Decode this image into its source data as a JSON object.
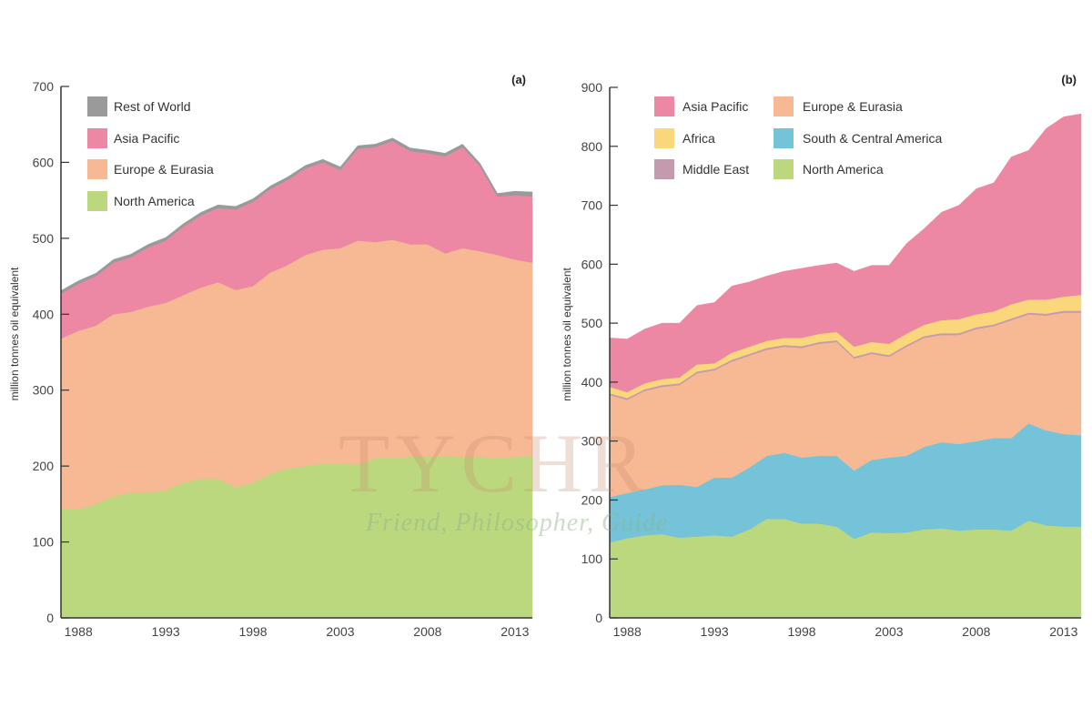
{
  "chart_data": [
    {
      "type": "area",
      "stacked": true,
      "panel_label": "(a)",
      "ylabel": "million tonnes oil equivalent",
      "xlim": [
        1987,
        2014
      ],
      "ylim": [
        0,
        700
      ],
      "yticks": [
        0,
        100,
        200,
        300,
        400,
        500,
        600,
        700
      ],
      "xticks": [
        1988,
        1993,
        1998,
        2003,
        2008,
        2013
      ],
      "grid": false,
      "legend_position": "top-left",
      "x": [
        1987,
        1988,
        1989,
        1990,
        1991,
        1992,
        1993,
        1994,
        1995,
        1996,
        1997,
        1998,
        1999,
        2000,
        2001,
        2002,
        2003,
        2004,
        2005,
        2006,
        2007,
        2008,
        2009,
        2010,
        2011,
        2012,
        2013,
        2014
      ],
      "series": [
        {
          "name": "North America",
          "color": "#bcd87f",
          "values": [
            143,
            143,
            150,
            160,
            165,
            165,
            168,
            178,
            183,
            183,
            172,
            178,
            190,
            197,
            200,
            203,
            203,
            202,
            210,
            210,
            212,
            213,
            213,
            212,
            212,
            210,
            212,
            213
          ]
        },
        {
          "name": "Europe & Eurasia",
          "color": "#f6b994",
          "values": [
            225,
            235,
            235,
            240,
            238,
            245,
            247,
            247,
            252,
            259,
            260,
            259,
            265,
            268,
            278,
            282,
            284,
            295,
            285,
            288,
            280,
            279,
            267,
            275,
            271,
            268,
            260,
            255
          ]
        },
        {
          "name": "Asia Pacific",
          "color": "#ec88a3",
          "values": [
            59,
            62,
            65,
            68,
            72,
            78,
            82,
            90,
            95,
            98,
            106,
            111,
            110,
            112,
            114,
            115,
            103,
            121,
            125,
            130,
            123,
            120,
            128,
            133,
            112,
            77,
            85,
            87
          ]
        },
        {
          "name": "Rest of World",
          "color": "#9a9a9a",
          "values": [
            4,
            4,
            4,
            4,
            4,
            4,
            4,
            4,
            4,
            4,
            4,
            4,
            4,
            4,
            4,
            4,
            4,
            4,
            4,
            4,
            4,
            4,
            4,
            4,
            4,
            4,
            5,
            6
          ]
        }
      ],
      "legend_order": [
        "Rest of World",
        "Asia Pacific",
        "Europe & Eurasia",
        "North America"
      ]
    },
    {
      "type": "area",
      "stacked": true,
      "panel_label": "(b)",
      "ylabel": "million tonnes oil equivalent",
      "xlim": [
        1987,
        2014
      ],
      "ylim": [
        0,
        900
      ],
      "yticks": [
        0,
        100,
        200,
        300,
        400,
        500,
        600,
        700,
        800,
        900
      ],
      "xticks": [
        1988,
        1993,
        1998,
        2003,
        2008,
        2013
      ],
      "grid": false,
      "legend_position": "top-left",
      "x": [
        1987,
        1988,
        1989,
        1990,
        1991,
        1992,
        1993,
        1994,
        1995,
        1996,
        1997,
        1998,
        1999,
        2000,
        2001,
        2002,
        2003,
        2004,
        2005,
        2006,
        2007,
        2008,
        2009,
        2010,
        2011,
        2012,
        2013,
        2014
      ],
      "series": [
        {
          "name": "North America",
          "color": "#bcd87f",
          "values": [
            128,
            135,
            140,
            142,
            136,
            138,
            140,
            138,
            150,
            168,
            168,
            160,
            160,
            155,
            134,
            145,
            144,
            145,
            150,
            152,
            148,
            150,
            150,
            148,
            165,
            157,
            155,
            155
          ]
        },
        {
          "name": "South & Central America",
          "color": "#74c3d8",
          "values": [
            77,
            77,
            78,
            83,
            90,
            84,
            98,
            100,
            105,
            107,
            112,
            112,
            115,
            120,
            116,
            123,
            128,
            130,
            140,
            146,
            147,
            150,
            155,
            157,
            165,
            161,
            157,
            155
          ]
        },
        {
          "name": "Europe & Eurasia",
          "color": "#f6b994",
          "values": [
            173,
            158,
            167,
            167,
            169,
            193,
            182,
            197,
            190,
            180,
            180,
            186,
            190,
            193,
            190,
            180,
            171,
            185,
            185,
            182,
            185,
            190,
            190,
            200,
            185,
            195,
            206,
            208
          ]
        },
        {
          "name": "Middle East",
          "color": "#c49aae",
          "values": [
            3,
            3,
            3,
            3,
            3,
            3,
            3,
            3,
            3,
            3,
            3,
            3,
            3,
            3,
            3,
            3,
            3,
            3,
            3,
            3,
            3,
            3,
            3,
            3,
            3,
            3,
            3,
            3
          ]
        },
        {
          "name": "Africa",
          "color": "#f9d77a",
          "values": [
            11,
            10,
            10,
            10,
            10,
            12,
            9,
            12,
            12,
            12,
            12,
            14,
            14,
            14,
            17,
            17,
            19,
            19,
            19,
            22,
            24,
            22,
            22,
            24,
            22,
            24,
            24,
            27
          ]
        },
        {
          "name": "Asia Pacific",
          "color": "#ec88a3",
          "values": [
            83,
            90,
            92,
            95,
            92,
            100,
            103,
            113,
            110,
            110,
            113,
            118,
            116,
            117,
            128,
            130,
            133,
            153,
            163,
            183,
            193,
            213,
            218,
            250,
            253,
            290,
            305,
            307
          ]
        }
      ],
      "legend_order": [
        "Asia Pacific",
        "Africa",
        "Middle East",
        "Europe & Eurasia",
        "South & Central America",
        "North America"
      ]
    }
  ],
  "watermark": {
    "title": "TYCHR",
    "tagline": "Friend, Philosopher, Guide"
  }
}
